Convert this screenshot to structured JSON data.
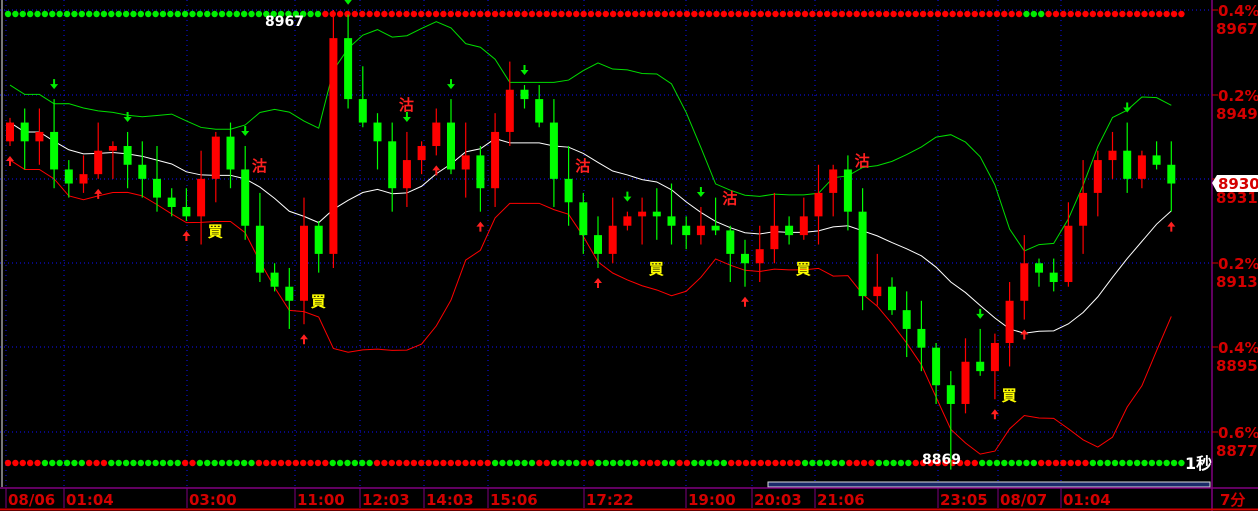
{
  "chart_data": {
    "type": "candlestick",
    "interval_label": "7分",
    "refresh_label": "1秒",
    "colors": {
      "up": "#ff0000",
      "down": "#00ff00",
      "ma": "#ffffff",
      "upper_band": "#00dd00",
      "lower_band": "#ff0000",
      "axis_text": "#d40000",
      "grid": "#0000ff",
      "frame": "#800080"
    },
    "ylim": [
      8869,
      8967
    ],
    "y_ticks": [
      {
        "pct": "0.4%",
        "price": "8967"
      },
      {
        "pct": "0.2%",
        "price": "8949"
      },
      {
        "pct": "",
        "price": "8931"
      },
      {
        "pct": "0.2%",
        "price": "8913"
      },
      {
        "pct": "0.4%",
        "price": "8895"
      },
      {
        "pct": "0.6%",
        "price": "8877"
      }
    ],
    "x_ticks": [
      "08/06",
      "01:04",
      "03:00",
      "11:00",
      "12:03",
      "14:03",
      "15:06",
      "17:22",
      "19:00",
      "20:03",
      "21:06",
      "23:05",
      "08/07",
      "01:04"
    ],
    "current_price": "8930",
    "high_label": "8967",
    "low_label": "8869",
    "closes": [
      8943,
      8939,
      8941,
      8933,
      8930,
      8932,
      8937,
      8938,
      8934,
      8931,
      8927,
      8925,
      8923,
      8931,
      8940,
      8933,
      8921,
      8911,
      8908,
      8905,
      8921,
      8915,
      8961,
      8948,
      8943,
      8939,
      8929,
      8935,
      8938,
      8943,
      8933,
      8936,
      8929,
      8941,
      8950,
      8948,
      8943,
      8931,
      8926,
      8919,
      8915,
      8921,
      8923,
      8924,
      8923,
      8921,
      8919,
      8921,
      8920,
      8915,
      8913,
      8916,
      8921,
      8919,
      8923,
      8928,
      8933,
      8924,
      8906,
      8908,
      8903,
      8899,
      8895,
      8887,
      8883,
      8892,
      8890,
      8896,
      8905,
      8913,
      8911,
      8909,
      8921,
      8928,
      8935,
      8937,
      8931,
      8936,
      8934,
      8930
    ],
    "signals": [
      {
        "label": "沽",
        "type": "sell",
        "index": 17
      },
      {
        "label": "沽",
        "type": "sell",
        "index": 27
      },
      {
        "label": "沽",
        "type": "sell",
        "index": 39
      },
      {
        "label": "沽",
        "type": "sell",
        "index": 49
      },
      {
        "label": "沽",
        "type": "sell",
        "index": 58
      },
      {
        "label": "買",
        "type": "buy",
        "index": 14
      },
      {
        "label": "買",
        "type": "buy",
        "index": 21
      },
      {
        "label": "買",
        "type": "buy",
        "index": 44
      },
      {
        "label": "買",
        "type": "buy",
        "index": 54
      },
      {
        "label": "買",
        "type": "buy",
        "index": 68
      }
    ],
    "arrows_up": [
      0,
      6,
      12,
      20,
      29,
      32,
      40,
      50,
      67,
      69,
      79
    ],
    "arrows_down": [
      3,
      8,
      16,
      23,
      27,
      30,
      35,
      42,
      47,
      66,
      76
    ],
    "top_dots": [
      [
        "g",
        43
      ],
      [
        "r",
        95
      ],
      [
        "g",
        3
      ],
      [
        "r",
        19
      ]
    ],
    "bottom_dots": [
      [
        "r",
        5
      ],
      [
        "g",
        6
      ],
      [
        "r",
        3
      ],
      [
        "g",
        10
      ],
      [
        "r",
        2
      ],
      [
        "g",
        8
      ],
      [
        "r",
        10
      ],
      [
        "g",
        6
      ],
      [
        "r",
        16
      ],
      [
        "g",
        6
      ],
      [
        "r",
        2
      ],
      [
        "g",
        4
      ],
      [
        "r",
        2
      ],
      [
        "g",
        6
      ],
      [
        "r",
        3
      ],
      [
        "g",
        2
      ],
      [
        "r",
        2
      ],
      [
        "g",
        5
      ],
      [
        "r",
        10
      ],
      [
        "g",
        6
      ],
      [
        "r",
        4
      ],
      [
        "g",
        5
      ],
      [
        "r",
        9
      ],
      [
        "g",
        8
      ],
      [
        "r",
        7
      ],
      [
        "g",
        13
      ]
    ]
  }
}
